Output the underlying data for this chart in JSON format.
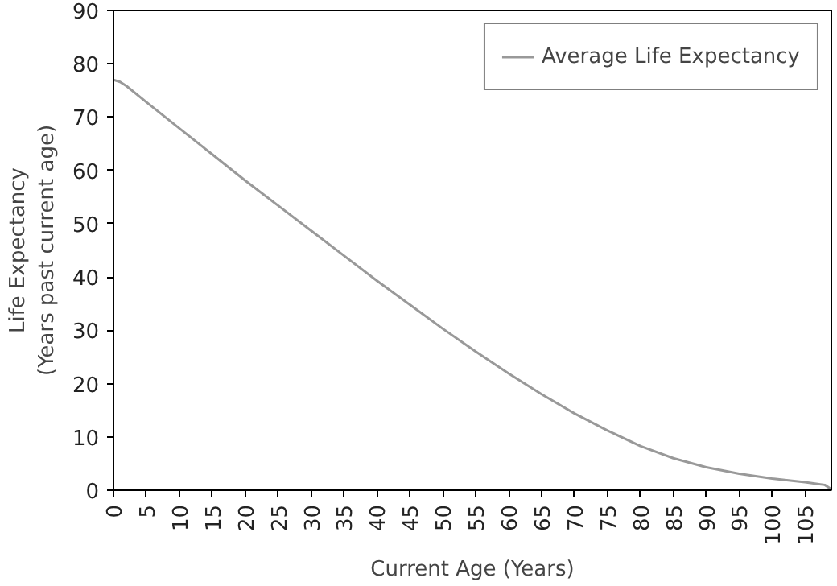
{
  "chart_data": {
    "type": "line",
    "xlabel": "Current Age (Years)",
    "ylabel": "Life Expectancy\n(Years past current age)",
    "x": [
      0,
      1,
      2,
      5,
      10,
      15,
      20,
      25,
      30,
      35,
      40,
      45,
      50,
      55,
      60,
      65,
      70,
      75,
      80,
      85,
      90,
      95,
      100,
      105,
      108,
      109
    ],
    "series": [
      {
        "name": "Average Life Expectancy",
        "color": "#999999",
        "values": [
          77,
          76.6,
          75.8,
          72.8,
          67.9,
          63,
          58.1,
          53.4,
          48.7,
          44,
          39.3,
          34.8,
          30.3,
          26,
          21.9,
          18,
          14.4,
          11.2,
          8.3,
          6,
          4.3,
          3.1,
          2.2,
          1.5,
          1,
          0.2
        ]
      }
    ],
    "xlim": [
      0,
      109
    ],
    "xticks": [
      0,
      5,
      10,
      15,
      20,
      25,
      30,
      35,
      40,
      45,
      50,
      55,
      60,
      65,
      70,
      75,
      80,
      85,
      90,
      95,
      100,
      105
    ],
    "ylim": [
      0,
      90
    ],
    "yticks": [
      0,
      10,
      20,
      30,
      40,
      50,
      60,
      70,
      80,
      90
    ],
    "grid": false,
    "legend": "top right",
    "marker": "none",
    "line_style": "solid"
  }
}
